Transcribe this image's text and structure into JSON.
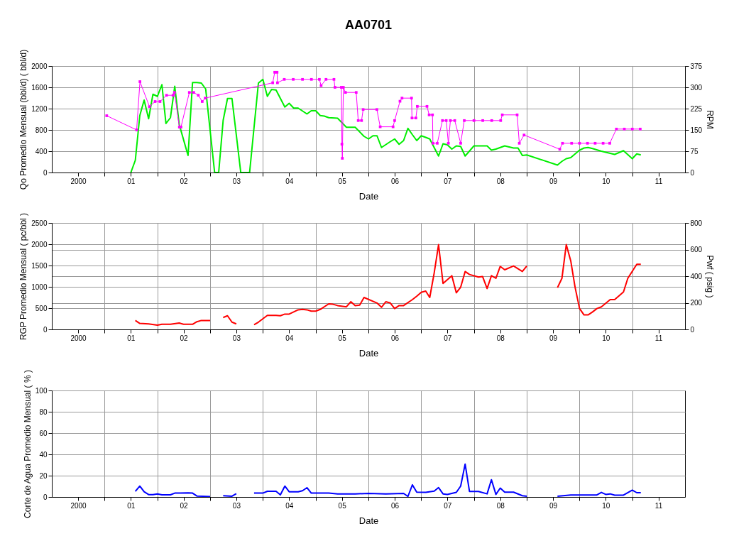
{
  "chart_data": [
    {
      "type": "line",
      "title": "AA0701",
      "xlabel": "Date",
      "ylabel": "Qo Promedio Mensual (bbl/d) ( bbl/d)",
      "y2label": "RPM",
      "xlim": [
        "2000",
        "2012"
      ],
      "xticks": [
        {
          "value": "2000-07",
          "label": "2000"
        },
        {
          "value": "2001",
          "label": null
        },
        {
          "value": "2001-07",
          "label": "01"
        },
        {
          "value": "2002",
          "label": null
        },
        {
          "value": "2002-07",
          "label": "02"
        },
        {
          "value": "2003",
          "label": null
        },
        {
          "value": "2003-07",
          "label": "03"
        },
        {
          "value": "2004",
          "label": null
        },
        {
          "value": "2004-07",
          "label": "04"
        },
        {
          "value": "2005",
          "label": null
        },
        {
          "value": "2005-07",
          "label": "05"
        },
        {
          "value": "2006",
          "label": null
        },
        {
          "value": "2006-07",
          "label": "06"
        },
        {
          "value": "2007",
          "label": null
        },
        {
          "value": "2007-07",
          "label": "07"
        },
        {
          "value": "2008",
          "label": null
        },
        {
          "value": "2008-07",
          "label": "08"
        },
        {
          "value": "2009",
          "label": null
        },
        {
          "value": "2009-07",
          "label": "09"
        },
        {
          "value": "2010",
          "label": null
        },
        {
          "value": "2010-07",
          "label": "10"
        },
        {
          "value": "2011",
          "label": null
        },
        {
          "value": "2011-07",
          "label": "11"
        }
      ],
      "ylim": [
        0,
        2000
      ],
      "yticks": [
        0,
        400,
        800,
        1200,
        1600,
        2000
      ],
      "y2lim": [
        0,
        375
      ],
      "y2ticks": [
        0,
        75,
        150,
        225,
        300,
        375
      ],
      "grid": true,
      "series": [
        {
          "color": "#00ee00",
          "x": [
            "2001-07",
            "2001-08",
            "2001-09",
            "2001-10",
            "2001-11",
            "2001-12",
            "2002-01",
            "2002-02",
            "2002-03",
            "2002-04",
            "2002-05",
            "2002-06",
            "2002-08",
            "2002-09",
            "2002-10",
            "2002-11",
            "2002-12",
            "2003-02",
            "2003-03",
            "2003-04",
            "2003-05",
            "2003-06",
            "2003-08",
            "2003-10",
            "2003-12",
            "2004-01",
            "2004-02",
            "2004-03",
            "2004-04",
            "2004-06",
            "2004-07",
            "2004-08",
            "2004-09",
            "2004-11",
            "2004-12",
            "2005-01",
            "2005-02",
            "2005-03",
            "2005-04",
            "2005-06",
            "2005-08",
            "2005-10",
            "2005-12",
            "2006-01",
            "2006-02",
            "2006-03",
            "2006-04",
            "2006-06",
            "2006-07",
            "2006-08",
            "2006-09",
            "2006-10",
            "2006-11",
            "2006-12",
            "2007-01",
            "2007-02",
            "2007-03",
            "2007-05",
            "2007-06",
            "2007-07",
            "2007-08",
            "2007-09",
            "2007-10",
            "2007-11",
            "2008-01",
            "2008-04",
            "2008-05",
            "2008-06",
            "2008-08",
            "2008-10",
            "2008-11",
            "2008-12",
            "2009-01",
            "2009-08",
            "2009-09",
            "2009-10",
            "2009-11",
            "2010-01",
            "2010-02",
            "2010-03",
            "2010-04",
            "2010-06",
            "2010-09",
            "2010-11",
            "2011-01",
            "2011-02",
            "2011-03"
          ],
          "values": [
            0,
            230,
            1070,
            1360,
            1010,
            1470,
            1430,
            1650,
            920,
            1030,
            1620,
            900,
            320,
            1690,
            1690,
            1680,
            1570,
            0,
            0,
            980,
            1390,
            1390,
            0,
            0,
            1680,
            1750,
            1430,
            1560,
            1550,
            1230,
            1300,
            1210,
            1210,
            1100,
            1160,
            1160,
            1070,
            1060,
            1030,
            1020,
            850,
            850,
            680,
            630,
            690,
            690,
            470,
            580,
            630,
            530,
            600,
            830,
            710,
            600,
            690,
            660,
            630,
            310,
            540,
            520,
            440,
            500,
            490,
            310,
            500,
            500,
            420,
            440,
            500,
            460,
            460,
            320,
            330,
            140,
            210,
            260,
            280,
            420,
            460,
            470,
            450,
            400,
            340,
            410,
            260,
            350,
            330
          ]
        },
        {
          "color": "#ff00ff",
          "axis": "y2",
          "marker": "square",
          "x": [
            "2001-01-15",
            "2001-08-10",
            "2001-09-02",
            "2001-11-07",
            "2001-12-16",
            "2002-01-19",
            "2002-03-05",
            "2002-04-19",
            "2002-04-29",
            "2002-06-02",
            "2002-06-13",
            "2002-08-10",
            "2002-09-09",
            "2002-10-11",
            "2002-11-07",
            "2002-11-28",
            "2004-03-09",
            "2004-03-23",
            "2004-04-08",
            "2004-04-11",
            "2004-05-28",
            "2004-07-29",
            "2004-10-01",
            "2004-12-02",
            "2005-01-26",
            "2005-02-07",
            "2005-03-13",
            "2005-05-07",
            "2005-05-14",
            "2005-06-27",
            "2005-07-01",
            "2005-07-04",
            "2005-07-11",
            "2005-07-26",
            "2005-10-08",
            "2005-10-22",
            "2005-11-14",
            "2005-11-25",
            "2006-02-28",
            "2006-03-23",
            "2006-06-20",
            "2006-07-01",
            "2006-08-07",
            "2006-08-21",
            "2006-10-26",
            "2006-10-29",
            "2006-11-25",
            "2006-12-05",
            "2007-02-10",
            "2007-02-25",
            "2007-03-20",
            "2007-03-23",
            "2007-04-22",
            "2007-05-28",
            "2007-06-23",
            "2007-07-08",
            "2007-07-22",
            "2007-08-21",
            "2007-10-01",
            "2007-10-26",
            "2008-01-01",
            "2008-03-02",
            "2008-05-03",
            "2008-07-04",
            "2008-07-15",
            "2008-10-26",
            "2008-11-10",
            "2008-12-13",
            "2009-08-17",
            "2009-09-05",
            "2009-11-07",
            "2010-01-01",
            "2010-02-25",
            "2010-04-19",
            "2010-06-13",
            "2010-07-29",
            "2010-09-13",
            "2010-11-07",
            "2011-01-01",
            "2011-02-25"
          ],
          "values": [
            200,
            150,
            320,
            232,
            250,
            250,
            272,
            272,
            282,
            160,
            160,
            282,
            282,
            272,
            250,
            262,
            316,
            353,
            353,
            316,
            328,
            328,
            328,
            328,
            328,
            306,
            328,
            328,
            300,
            300,
            100,
            50,
            300,
            282,
            282,
            183,
            183,
            222,
            222,
            161,
            161,
            183,
            251,
            262,
            262,
            192,
            192,
            233,
            233,
            203,
            203,
            103,
            103,
            183,
            183,
            103,
            183,
            183,
            103,
            183,
            183,
            183,
            183,
            183,
            203,
            203,
            103,
            132,
            82,
            103,
            103,
            103,
            103,
            103,
            103,
            103,
            153,
            153,
            153,
            153
          ]
        }
      ]
    },
    {
      "type": "line",
      "xlabel": "Date",
      "ylabel": "RGP Promedio Mensual ( pc/bbl )",
      "y2label": "Pwf ( psig )",
      "xlim": [
        "2000",
        "2012"
      ],
      "xticks": [
        {
          "value": "2000-07",
          "label": "2000"
        },
        {
          "value": "2001",
          "label": null
        },
        {
          "value": "2001-07",
          "label": "01"
        },
        {
          "value": "2002",
          "label": null
        },
        {
          "value": "2002-07",
          "label": "02"
        },
        {
          "value": "2003",
          "label": null
        },
        {
          "value": "2003-07",
          "label": "03"
        },
        {
          "value": "2004",
          "label": null
        },
        {
          "value": "2004-07",
          "label": "04"
        },
        {
          "value": "2005",
          "label": null
        },
        {
          "value": "2005-07",
          "label": "05"
        },
        {
          "value": "2006",
          "label": null
        },
        {
          "value": "2006-07",
          "label": "06"
        },
        {
          "value": "2007",
          "label": null
        },
        {
          "value": "2007-07",
          "label": "07"
        },
        {
          "value": "2008",
          "label": null
        },
        {
          "value": "2008-07",
          "label": "08"
        },
        {
          "value": "2009",
          "label": null
        },
        {
          "value": "2009-07",
          "label": "09"
        },
        {
          "value": "2010",
          "label": null
        },
        {
          "value": "2010-07",
          "label": "10"
        },
        {
          "value": "2011",
          "label": null
        },
        {
          "value": "2011-07",
          "label": "11"
        }
      ],
      "ylim": [
        0,
        2500
      ],
      "yticks": [
        0,
        500,
        1000,
        1500,
        2000,
        2500
      ],
      "y2lim": [
        0,
        800
      ],
      "y2ticks": [
        0,
        200,
        400,
        600,
        800
      ],
      "grid": true,
      "series": [
        {
          "color": "#ff0000",
          "x": [
            "2001-08",
            "2001-09",
            "2001-11",
            "2002-01",
            "2002-02",
            "2002-04",
            "2002-06",
            "2002-07",
            "2002-09",
            "2002-10",
            "2002-11",
            "2003-01",
            "2003-02",
            "2003-04",
            "2003-05",
            "2003-06",
            "2003-07",
            "2003-09",
            "2003-11",
            "2003-12",
            "2004-02",
            "2004-04",
            "2004-05",
            "2004-06",
            "2004-07",
            "2004-09",
            "2004-10",
            "2004-11",
            "2004-12",
            "2005-01",
            "2005-02",
            "2005-04",
            "2005-05",
            "2005-06",
            "2005-08",
            "2005-09",
            "2005-10",
            "2005-11",
            "2005-12",
            "2006-03",
            "2006-04",
            "2006-05",
            "2006-06",
            "2006-07",
            "2006-08",
            "2006-09",
            "2006-11",
            "2006-12",
            "2007-01",
            "2007-02",
            "2007-03",
            "2007-04",
            "2007-05",
            "2007-06",
            "2007-08",
            "2007-09",
            "2007-10",
            "2007-11",
            "2007-12",
            "2008-02",
            "2008-03",
            "2008-04",
            "2008-05",
            "2008-06",
            "2008-07",
            "2008-08",
            "2008-10",
            "2008-12",
            "2009-01",
            "2009-05",
            "2009-08",
            "2009-09",
            "2009-10",
            "2009-11",
            "2009-12",
            "2010-01",
            "2010-02",
            "2010-03",
            "2010-04",
            "2010-05",
            "2010-06",
            "2010-08",
            "2010-09",
            "2010-11",
            "2010-12",
            "2011-02",
            "2011-03"
          ],
          "values": [
            210,
            140,
            130,
            100,
            120,
            120,
            150,
            120,
            120,
            180,
            210,
            210,
            null,
            280,
            320,
            170,
            130,
            null,
            110,
            170,
            330,
            330,
            320,
            360,
            360,
            460,
            470,
            460,
            430,
            430,
            470,
            600,
            590,
            560,
            530,
            650,
            560,
            570,
            750,
            620,
            520,
            650,
            620,
            490,
            560,
            560,
            700,
            780,
            870,
            900,
            750,
            1330,
            1990,
            1080,
            1260,
            860,
            990,
            1360,
            1290,
            1230,
            1240,
            960,
            1260,
            1200,
            1480,
            1400,
            1490,
            1360,
            1490,
            null,
            980,
            1200,
            1990,
            1610,
            990,
            490,
            340,
            340,
            410,
            490,
            530,
            700,
            700,
            880,
            1200,
            1530,
            1530
          ]
        }
      ]
    },
    {
      "type": "line",
      "xlabel": "Date",
      "ylabel": "Corte de Agua Promedio Mensual ( % )",
      "xlim": [
        "2000",
        "2012"
      ],
      "xticks": [
        {
          "value": "2000-07",
          "label": "2000"
        },
        {
          "value": "2001",
          "label": null
        },
        {
          "value": "2001-07",
          "label": "01"
        },
        {
          "value": "2002",
          "label": null
        },
        {
          "value": "2002-07",
          "label": "02"
        },
        {
          "value": "2003",
          "label": null
        },
        {
          "value": "2003-07",
          "label": "03"
        },
        {
          "value": "2004",
          "label": null
        },
        {
          "value": "2004-07",
          "label": "04"
        },
        {
          "value": "2005",
          "label": null
        },
        {
          "value": "2005-07",
          "label": "05"
        },
        {
          "value": "2006",
          "label": null
        },
        {
          "value": "2006-07",
          "label": "06"
        },
        {
          "value": "2007",
          "label": null
        },
        {
          "value": "2007-07",
          "label": "07"
        },
        {
          "value": "2008",
          "label": null
        },
        {
          "value": "2008-07",
          "label": "08"
        },
        {
          "value": "2009",
          "label": null
        },
        {
          "value": "2009-07",
          "label": "09"
        },
        {
          "value": "2010",
          "label": null
        },
        {
          "value": "2010-07",
          "label": "10"
        },
        {
          "value": "2011",
          "label": null
        },
        {
          "value": "2011-07",
          "label": "11"
        }
      ],
      "ylim": [
        0,
        100
      ],
      "yticks": [
        0,
        20,
        40,
        60,
        80,
        100
      ],
      "grid": true,
      "series": [
        {
          "color": "#0000ff",
          "x": [
            "2001-08",
            "2001-09",
            "2001-10",
            "2001-11",
            "2001-12",
            "2002-01",
            "2002-02",
            "2002-04",
            "2002-05",
            "2002-08",
            "2002-09",
            "2002-10",
            "2003-01",
            "2003-02",
            "2003-04",
            "2003-06",
            "2003-07",
            "2003-09",
            "2003-11",
            "2004-01",
            "2004-02",
            "2004-04",
            "2004-05",
            "2004-06",
            "2004-07",
            "2004-09",
            "2004-10",
            "2004-11",
            "2004-12",
            "2005-04",
            "2005-06",
            "2005-10",
            "2006-01",
            "2006-05",
            "2006-09",
            "2006-10",
            "2006-11",
            "2006-12",
            "2007-02",
            "2007-04",
            "2007-05",
            "2007-06",
            "2007-07",
            "2007-09",
            "2007-10",
            "2007-11",
            "2007-12",
            "2008-02",
            "2008-04",
            "2008-05",
            "2008-06",
            "2008-07",
            "2008-08",
            "2008-10",
            "2008-12",
            "2009-01",
            "2009-05",
            "2009-08",
            "2009-11",
            "2010-05",
            "2010-06",
            "2010-07",
            "2010-08",
            "2010-09",
            "2010-11",
            "2011-01",
            "2011-02",
            "2011-03"
          ],
          "values": [
            5.3,
            10.2,
            4.9,
            2.2,
            2.2,
            2.9,
            2,
            2,
            3.6,
            3.8,
            3.6,
            0.9,
            0.4,
            null,
            1.1,
            0.7,
            3.1,
            null,
            3.6,
            3.6,
            5.3,
            5.3,
            2,
            10.2,
            4.9,
            4.9,
            5.8,
            8.7,
            3.6,
            3.6,
            2.9,
            2.9,
            3.3,
            2.9,
            3.3,
            0.5,
            11.4,
            4.5,
            4.3,
            5.5,
            8.8,
            2.9,
            2.4,
            4.3,
            10.2,
            30.9,
            5.2,
            5.2,
            2.9,
            16.2,
            2.4,
            8.3,
            4.5,
            4.5,
            1.2,
            0.7,
            null,
            0.7,
            1.9,
            1.9,
            4.3,
            2.4,
            2.9,
            1.7,
            1.7,
            6.4,
            4,
            4
          ]
        }
      ]
    }
  ]
}
